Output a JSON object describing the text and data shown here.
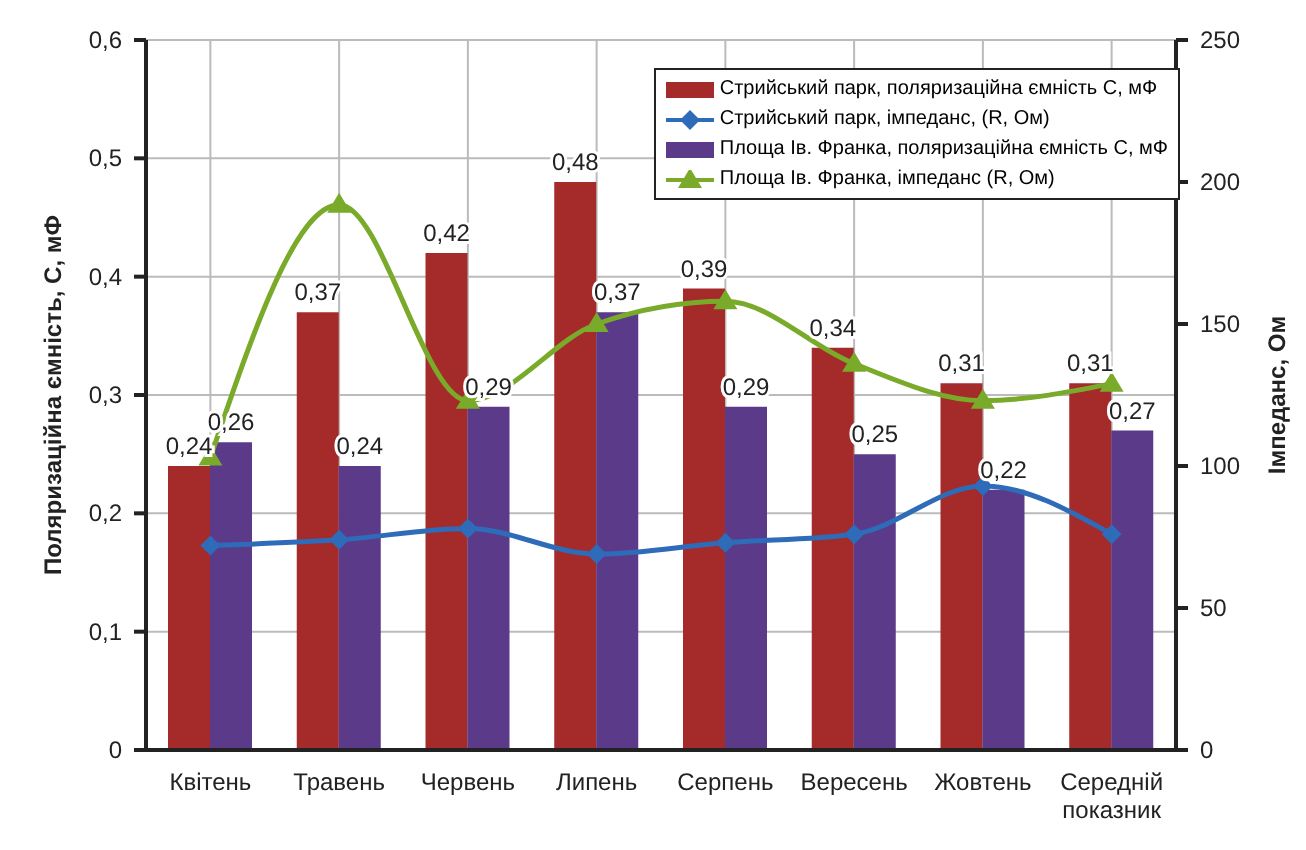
{
  "chart_data": {
    "type": "bar",
    "xlabel": null,
    "ylabel": "Поляризаційна ємність, С, мФ",
    "y2label": "Імпеданс, Ом",
    "categories": [
      "Квітень",
      "Травень",
      "Червень",
      "Липень",
      "Серпень",
      "Вересень",
      "Жовтень",
      "Середній показник"
    ],
    "series": [
      {
        "name": "Стрийський парк, поляризаційна ємність С, мФ",
        "color": "#a52a2a",
        "values": [
          0.24,
          0.37,
          0.42,
          0.48,
          0.39,
          0.34,
          0.31,
          0.31
        ],
        "value_labels": [
          "0,24",
          "0,37",
          "0,42",
          "0,48",
          "0,39",
          "0,34",
          "0,31",
          "0,31"
        ]
      },
      {
        "name": "Стрийський парк, імпеданс,  (R, Ом)",
        "type": "line",
        "axis": "y2",
        "color": "#2e6bb8",
        "marker": "diamond",
        "values": [
          72,
          74,
          78,
          69,
          73,
          76,
          93,
          76
        ]
      },
      {
        "name": "Площа Ів. Франка, поляризаційна ємність С, мФ",
        "color": "#5b3a8a",
        "values": [
          0.26,
          0.24,
          0.29,
          0.37,
          0.29,
          0.25,
          0.22,
          0.27
        ],
        "value_labels": [
          "0,26",
          "0,24",
          "0,29",
          "0,37",
          "0,29",
          "0,25",
          "0,22",
          "0,27"
        ]
      },
      {
        "name": "Площа Ів. Франка, імпеданс (R, Ом)",
        "type": "line",
        "axis": "y2",
        "color": "#7aaa2a",
        "marker": "triangle",
        "values": [
          103,
          192,
          123,
          150,
          158,
          136,
          123,
          129
        ]
      }
    ],
    "ylim": [
      0,
      0.6
    ],
    "yticks": [
      0,
      {
        "value": 0.1,
        "label": "0,1"
      },
      {
        "value": 0.2,
        "label": "0,2"
      },
      {
        "value": 0.3,
        "label": "0,3"
      },
      {
        "value": 0.4,
        "label": "0,4"
      },
      {
        "value": 0.5,
        "label": "0,5"
      },
      {
        "value": 0.6,
        "label": "0,6"
      }
    ],
    "y2lim": [
      0,
      250
    ],
    "y2ticks": [
      0,
      50,
      100,
      150,
      200,
      250
    ],
    "grid": true,
    "legend": "top right"
  }
}
